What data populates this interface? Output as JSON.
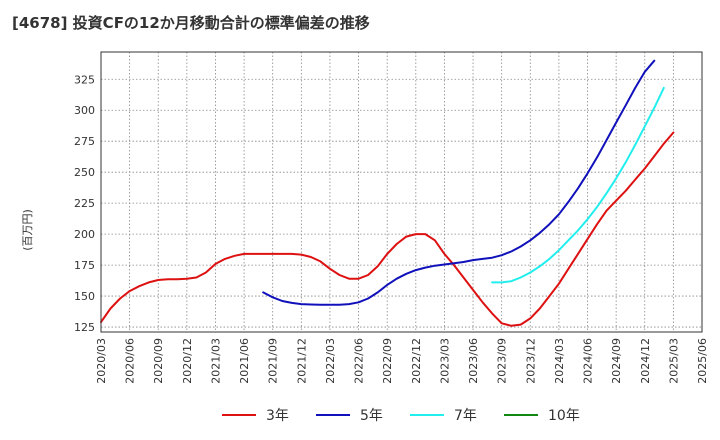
{
  "title": "[4678]  投資CFの12か月移動合計の標準偏差の推移",
  "chart_data": {
    "type": "line",
    "title": "[4678]  投資CFの12か月移動合計の標準偏差の推移",
    "xlabel": "",
    "ylabel": "(百万円)",
    "ylim": [
      121,
      347
    ],
    "grid": true,
    "legend_position": "bottom",
    "y_ticks": [
      125,
      150,
      175,
      200,
      225,
      250,
      275,
      300,
      325
    ],
    "x_ticks": [
      "2020/03",
      "2020/06",
      "2020/09",
      "2020/12",
      "2021/03",
      "2021/06",
      "2021/09",
      "2021/12",
      "2022/03",
      "2022/06",
      "2022/09",
      "2022/12",
      "2023/03",
      "2023/06",
      "2023/09",
      "2023/12",
      "2024/03",
      "2024/06",
      "2024/09",
      "2024/12",
      "2025/03",
      "2025/06"
    ],
    "series": [
      {
        "name": "3年",
        "color": "#dd1111",
        "x": [
          "2020/03",
          "2020/04",
          "2020/05",
          "2020/06",
          "2020/07",
          "2020/08",
          "2020/09",
          "2020/10",
          "2020/11",
          "2020/12",
          "2021/01",
          "2021/02",
          "2021/03",
          "2021/04",
          "2021/05",
          "2021/06",
          "2021/07",
          "2021/08",
          "2021/09",
          "2021/10",
          "2021/11",
          "2021/12",
          "2022/01",
          "2022/02",
          "2022/03",
          "2022/04",
          "2022/05",
          "2022/06",
          "2022/07",
          "2022/08",
          "2022/09",
          "2022/10",
          "2022/11",
          "2022/12",
          "2023/01",
          "2023/02",
          "2023/03",
          "2023/04",
          "2023/05",
          "2023/06",
          "2023/07",
          "2023/08",
          "2023/09",
          "2023/10",
          "2023/11",
          "2023/12",
          "2024/01",
          "2024/02",
          "2024/03",
          "2024/04",
          "2024/05",
          "2024/06",
          "2024/07",
          "2024/08",
          "2024/09",
          "2024/10",
          "2024/11",
          "2024/12",
          "2025/01",
          "2025/02",
          "2025/03"
        ],
        "values": [
          129,
          140,
          148,
          154,
          158,
          161,
          163,
          163.5,
          163.5,
          164,
          165,
          169,
          176,
          180,
          182.5,
          184,
          184,
          184,
          184,
          184,
          184,
          183.5,
          181.5,
          178,
          172,
          167,
          164,
          164,
          167,
          174,
          184,
          192,
          198,
          200,
          200,
          195,
          184,
          175,
          165,
          155,
          145,
          136,
          128,
          126,
          127,
          132,
          140,
          150,
          160,
          172,
          184,
          196,
          208,
          219,
          227,
          235,
          244,
          253,
          263,
          273,
          282
        ]
      },
      {
        "name": "5年",
        "color": "#1111bb",
        "x": [
          "2021/08",
          "2021/09",
          "2021/10",
          "2021/11",
          "2021/12",
          "2022/01",
          "2022/02",
          "2022/03",
          "2022/04",
          "2022/05",
          "2022/06",
          "2022/07",
          "2022/08",
          "2022/09",
          "2022/10",
          "2022/11",
          "2022/12",
          "2023/01",
          "2023/02",
          "2023/03",
          "2023/04",
          "2023/05",
          "2023/06",
          "2023/07",
          "2023/08",
          "2023/09",
          "2023/10",
          "2023/11",
          "2023/12",
          "2024/01",
          "2024/02",
          "2024/03",
          "2024/04",
          "2024/05",
          "2024/06",
          "2024/07",
          "2024/08",
          "2024/09",
          "2024/10",
          "2024/11",
          "2024/12",
          "2025/01",
          "2025/02",
          "2025/03"
        ],
        "values": [
          153,
          149,
          146,
          144.5,
          143.5,
          143.2,
          143,
          143,
          143,
          143.5,
          145,
          148,
          153,
          159,
          164,
          168,
          171,
          173,
          174.5,
          175.5,
          176.5,
          177.5,
          179,
          180,
          181,
          183,
          186,
          190,
          195,
          201,
          208,
          216,
          226,
          237,
          249,
          262,
          276,
          290,
          304,
          318,
          331,
          340,
          null,
          null
        ]
      },
      {
        "name": "7年",
        "color": "#22eeee",
        "x": [
          "2023/08",
          "2023/09",
          "2023/10",
          "2023/11",
          "2023/12",
          "2024/01",
          "2024/02",
          "2024/03",
          "2024/04",
          "2024/05",
          "2024/06",
          "2024/07",
          "2024/08",
          "2024/09",
          "2024/10",
          "2024/11",
          "2024/12",
          "2025/01",
          "2025/02",
          "2025/03"
        ],
        "values": [
          161,
          161,
          162,
          165,
          169,
          174,
          180,
          187,
          195,
          203,
          212,
          222,
          233,
          245,
          258,
          272,
          287,
          302,
          318,
          null
        ]
      },
      {
        "name": "10年",
        "color": "#118811",
        "x": [],
        "values": []
      }
    ]
  }
}
